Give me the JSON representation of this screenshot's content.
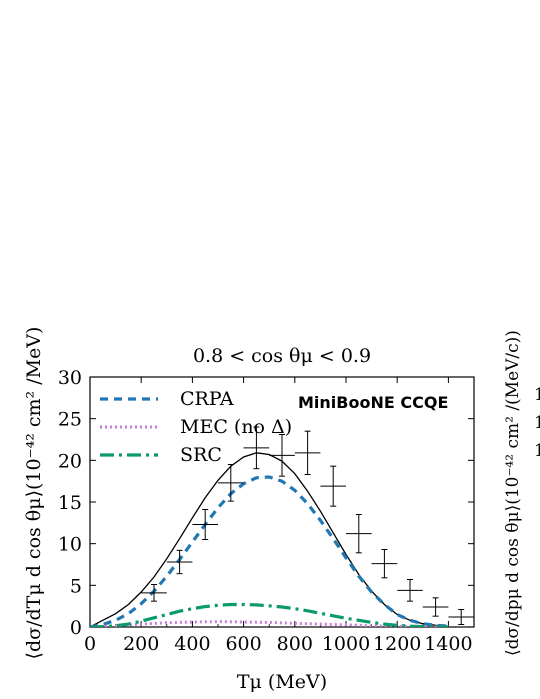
{
  "chart_data": {
    "type": "line",
    "title": "0.8 < cos θμ < 0.9",
    "xlabel": "Tμ (MeV)",
    "ylabel": "⟨dσ/dTμ d cos θμ⟩(10⁻⁴² cm² /MeV)",
    "xlim": [
      0,
      1500
    ],
    "ylim": [
      0,
      30
    ],
    "x_ticks": [
      0,
      200,
      400,
      600,
      800,
      1000,
      1200,
      1400
    ],
    "y_ticks": [
      0,
      5,
      10,
      15,
      20,
      25,
      30
    ],
    "annotation": "MiniBooNE CCQE",
    "legend_position": "top-left",
    "colors": {
      "total": "#000000",
      "crpa": "#1f77b4",
      "mec": "#c77dd9",
      "src": "#0a9a6e",
      "data": "#000000"
    },
    "series": [
      {
        "name": "",
        "key": "total",
        "style": "solid",
        "x": [
          0,
          50,
          100,
          150,
          200,
          250,
          300,
          350,
          400,
          450,
          500,
          550,
          600,
          650,
          700,
          750,
          800,
          850,
          900,
          950,
          1000,
          1050,
          1100,
          1150,
          1200,
          1250,
          1300,
          1350,
          1400
        ],
        "y": [
          0,
          0.8,
          1.6,
          2.7,
          4.2,
          6.0,
          8.2,
          10.6,
          13.1,
          15.5,
          17.6,
          19.3,
          20.4,
          20.9,
          20.7,
          19.9,
          18.4,
          16.3,
          13.9,
          11.3,
          8.7,
          6.3,
          4.3,
          2.7,
          1.5,
          0.8,
          0.4,
          0.2,
          0.1
        ]
      },
      {
        "name": "CRPA",
        "key": "crpa",
        "style": "dashed",
        "x": [
          0,
          50,
          100,
          150,
          200,
          250,
          300,
          350,
          400,
          450,
          500,
          550,
          600,
          650,
          700,
          750,
          800,
          850,
          900,
          950,
          1000,
          1050,
          1100,
          1150,
          1200,
          1250,
          1300,
          1350,
          1400
        ],
        "y": [
          0,
          0.3,
          0.8,
          1.6,
          2.8,
          4.3,
          6.1,
          8.1,
          10.2,
          12.3,
          14.3,
          16.0,
          17.2,
          17.9,
          18.0,
          17.5,
          16.4,
          14.8,
          12.8,
          10.6,
          8.3,
          6.1,
          4.2,
          2.7,
          1.5,
          0.8,
          0.4,
          0.2,
          0.1
        ]
      },
      {
        "name": "MEC (no Δ)",
        "key": "mec",
        "style": "dotted",
        "x": [
          0,
          100,
          200,
          300,
          400,
          500,
          600,
          700,
          800,
          900,
          1000,
          1100,
          1200,
          1300,
          1400
        ],
        "y": [
          0,
          0.15,
          0.35,
          0.5,
          0.6,
          0.65,
          0.6,
          0.55,
          0.45,
          0.35,
          0.25,
          0.15,
          0.1,
          0.05,
          0.02
        ]
      },
      {
        "name": "SRC",
        "key": "src",
        "style": "dashdot",
        "x": [
          0,
          50,
          100,
          150,
          200,
          250,
          300,
          350,
          400,
          450,
          500,
          550,
          600,
          650,
          700,
          750,
          800,
          850,
          900,
          950,
          1000,
          1050,
          1100,
          1150,
          1200,
          1250,
          1300,
          1350,
          1400
        ],
        "y": [
          0,
          0.05,
          0.15,
          0.35,
          0.7,
          1.1,
          1.5,
          1.9,
          2.2,
          2.45,
          2.6,
          2.7,
          2.7,
          2.65,
          2.55,
          2.4,
          2.2,
          1.95,
          1.65,
          1.35,
          1.05,
          0.8,
          0.55,
          0.35,
          0.2,
          0.1,
          0.05,
          0.02,
          0.0
        ]
      }
    ],
    "data_points": [
      {
        "x": 250,
        "y": 4.1,
        "xerr": 50,
        "yerr": 1.0
      },
      {
        "x": 350,
        "y": 7.8,
        "xerr": 50,
        "yerr": 1.4
      },
      {
        "x": 450,
        "y": 12.3,
        "xerr": 50,
        "yerr": 1.8
      },
      {
        "x": 550,
        "y": 17.3,
        "xerr": 50,
        "yerr": 2.2
      },
      {
        "x": 650,
        "y": 21.5,
        "xerr": 50,
        "yerr": 2.5
      },
      {
        "x": 750,
        "y": 20.6,
        "xerr": 50,
        "yerr": 2.5
      },
      {
        "x": 850,
        "y": 20.9,
        "xerr": 50,
        "yerr": 2.6
      },
      {
        "x": 950,
        "y": 16.9,
        "xerr": 50,
        "yerr": 2.4
      },
      {
        "x": 1050,
        "y": 11.2,
        "xerr": 50,
        "yerr": 2.3
      },
      {
        "x": 1150,
        "y": 7.6,
        "xerr": 50,
        "yerr": 1.7
      },
      {
        "x": 1250,
        "y": 4.4,
        "xerr": 50,
        "yerr": 1.3
      },
      {
        "x": 1350,
        "y": 2.4,
        "xerr": 50,
        "yerr": 1.1
      },
      {
        "x": 1450,
        "y": 1.2,
        "xerr": 50,
        "yerr": 0.9
      }
    ]
  },
  "partial_panel": {
    "ylabel": "⟨dσ/dpμ d cos θμ⟩(10⁻⁴² cm² /(MeV/c))",
    "tick_labels": [
      "1",
      "1",
      "1"
    ]
  }
}
